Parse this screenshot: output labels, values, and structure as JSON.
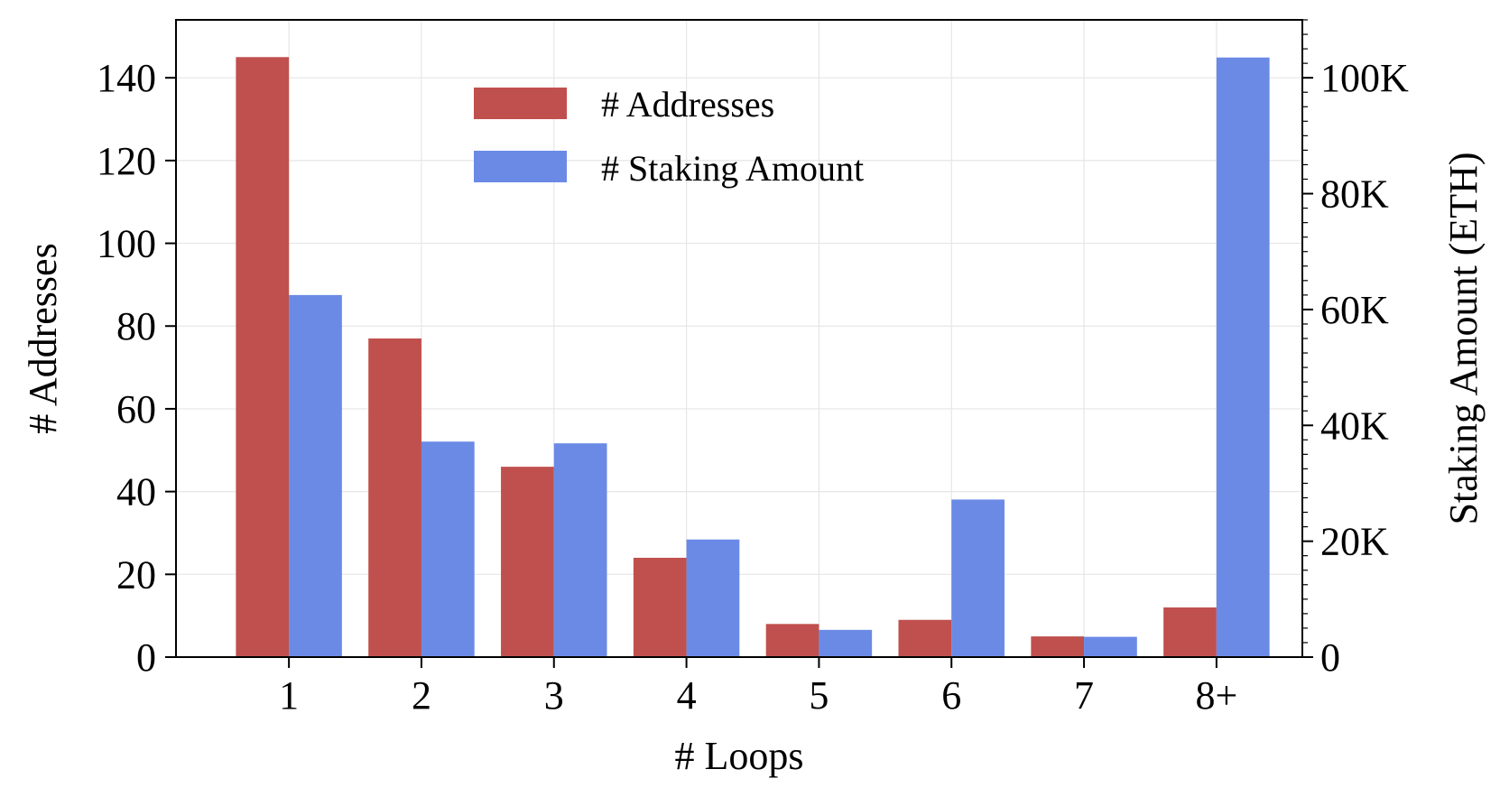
{
  "chart_data": {
    "type": "bar",
    "categories": [
      "1",
      "2",
      "3",
      "4",
      "5",
      "6",
      "7",
      "8+"
    ],
    "series": [
      {
        "name": "# Addresses",
        "axis": "left",
        "color": "#c0504d",
        "values": [
          145,
          77,
          46,
          24,
          8,
          9,
          5,
          12
        ]
      },
      {
        "name": "# Staking Amount",
        "axis": "right",
        "color": "#6a8ae6",
        "values": [
          62500,
          37200,
          36900,
          20300,
          4700,
          27200,
          3500,
          103500
        ]
      }
    ],
    "xlabel": "# Loops",
    "ylabel": "# Addresses",
    "ylabel_right": "Staking Amount (ETH)",
    "ylim": [
      0,
      154
    ],
    "ylim_right": [
      0,
      110000
    ],
    "yticks": [
      0,
      20,
      40,
      60,
      80,
      100,
      120,
      140
    ],
    "yticks_right": [
      0,
      20000,
      40000,
      60000,
      80000,
      100000
    ],
    "yticks_right_labels": [
      "0",
      "20K",
      "40K",
      "60K",
      "80K",
      "100K"
    ],
    "grid": true,
    "legend_position": "top-center"
  }
}
